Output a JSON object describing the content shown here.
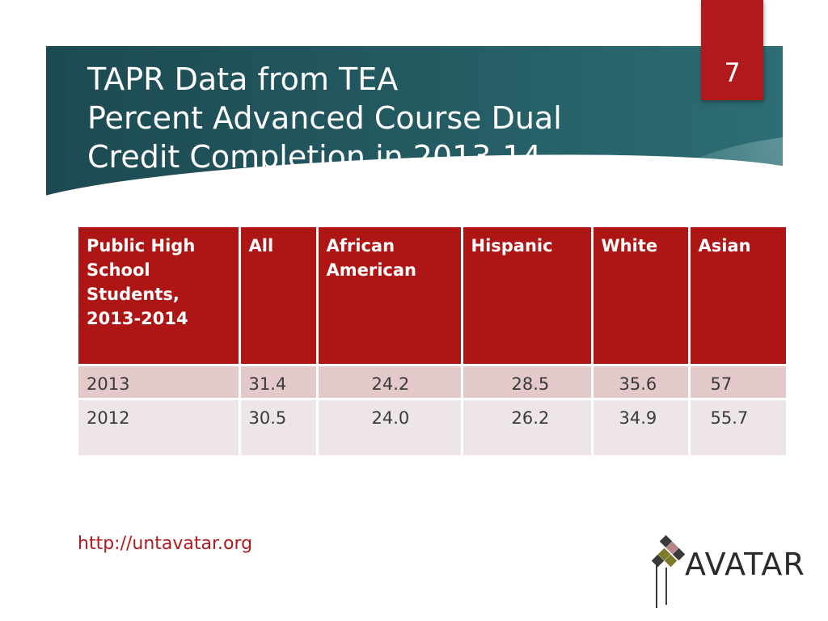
{
  "slide": {
    "page_number": "7",
    "title_lines": [
      "TAPR Data from TEA",
      "Percent Advanced Course Dual",
      "Credit Completion in 2013-14"
    ]
  },
  "table": {
    "headers": [
      "Public High School Students, 2013-2014",
      "All",
      "African American",
      "Hispanic",
      "White",
      "Asian"
    ],
    "rows": [
      [
        "2013",
        "31.4",
        "24.2",
        "28.5",
        "35.6",
        "57"
      ],
      [
        "2012",
        "30.5",
        "24.0",
        "26.2",
        "34.9",
        "55.7"
      ]
    ]
  },
  "footer": {
    "url": "http://untavatar.org",
    "logo_text": "AVATAR"
  },
  "colors": {
    "accent_red": "#b1191c",
    "title_teal": "#225860",
    "row_alt": "#e3c9ca",
    "row_light": "#eee5e6",
    "logo_olive": "#7d7a2c",
    "logo_dark": "#3a3a3a",
    "logo_mauve": "#b9838a"
  }
}
